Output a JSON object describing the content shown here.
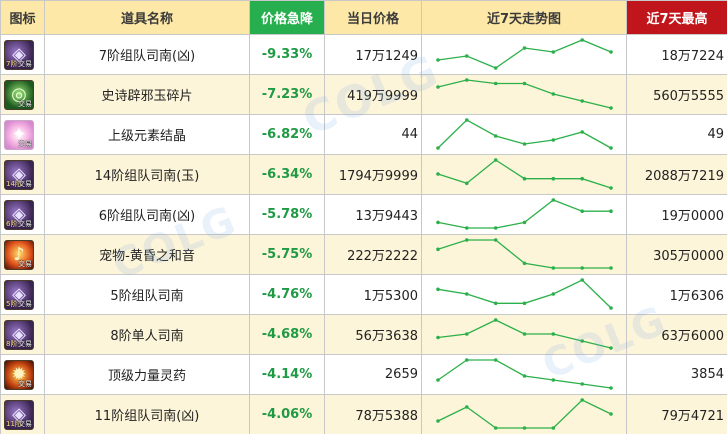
{
  "table": {
    "headers": {
      "icon": "图标",
      "name": "道具名称",
      "drop": "价格急降",
      "price": "当日价格",
      "trend": "近7天走势图",
      "max": "近7天最高"
    },
    "colors": {
      "header_bg": "#fde8a8",
      "drop_header_bg": "#27ae4f",
      "max_header_bg": "#c0161b",
      "drop_text": "#1f9a44",
      "trend_line": "#2bb04a",
      "row_alt_bg": "#fdf5d9"
    },
    "trade_tag": "交易",
    "rows": [
      {
        "icon": "purple-gem-icon",
        "level": "7阶",
        "name": "7阶组队司南(凶)",
        "drop": "-9.33%",
        "price": "17万1249",
        "max": "18万7224",
        "trend": [
          3,
          4,
          1,
          6,
          5,
          8,
          5
        ]
      },
      {
        "icon": "green-jade-icon",
        "level": "",
        "name": "史诗辟邪玉碎片",
        "drop": "-7.23%",
        "price": "419万9999",
        "max": "560万5555",
        "trend": [
          6,
          8,
          7,
          7,
          4,
          2,
          0
        ]
      },
      {
        "icon": "pink-crystal-icon",
        "level": "",
        "name": "上级元素结晶",
        "drop": "-6.82%",
        "price": "44",
        "max": "49",
        "trend": [
          1,
          8,
          4,
          2,
          3,
          5,
          1
        ]
      },
      {
        "icon": "purple-gem-icon",
        "level": "14阶",
        "name": "14阶组队司南(玉)",
        "drop": "-6.34%",
        "price": "1794万9999",
        "max": "2088万7219",
        "trend": [
          4,
          2,
          7,
          3,
          3,
          3,
          1
        ]
      },
      {
        "icon": "purple-gem-icon",
        "level": "6阶",
        "name": "6阶组队司南(凶)",
        "drop": "-5.78%",
        "price": "13万9443",
        "max": "19万0000",
        "trend": [
          2,
          1,
          1,
          2,
          6,
          4,
          4
        ]
      },
      {
        "icon": "pet-sound-icon",
        "level": "",
        "name": "宠物-黄昏之和音",
        "drop": "-5.75%",
        "price": "222万2222",
        "max": "305万0000",
        "trend": [
          5,
          7,
          7,
          2,
          1,
          1,
          1
        ]
      },
      {
        "icon": "purple-gem-icon",
        "level": "5阶",
        "name": "5阶组队司南",
        "drop": "-4.76%",
        "price": "1万5300",
        "max": "1万6306",
        "trend": [
          6,
          5,
          3,
          3,
          5,
          8,
          2
        ]
      },
      {
        "icon": "purple-gem-icon",
        "level": "8阶",
        "name": "8阶单人司南",
        "drop": "-4.68%",
        "price": "56万3638",
        "max": "63万6000",
        "trend": [
          3,
          4,
          8,
          4,
          4,
          2,
          0
        ]
      },
      {
        "icon": "fire-potion-icon",
        "level": "",
        "name": "顶级力量灵药",
        "drop": "-4.14%",
        "price": "2659",
        "max": "3854",
        "trend": [
          2,
          7,
          7,
          3,
          2,
          1,
          0
        ]
      },
      {
        "icon": "purple-gem-icon",
        "level": "11阶",
        "name": "11阶组队司南(凶)",
        "drop": "-4.06%",
        "price": "78万5388",
        "max": "79万4721",
        "trend": [
          2,
          4,
          1,
          1,
          1,
          5,
          3
        ]
      }
    ]
  }
}
